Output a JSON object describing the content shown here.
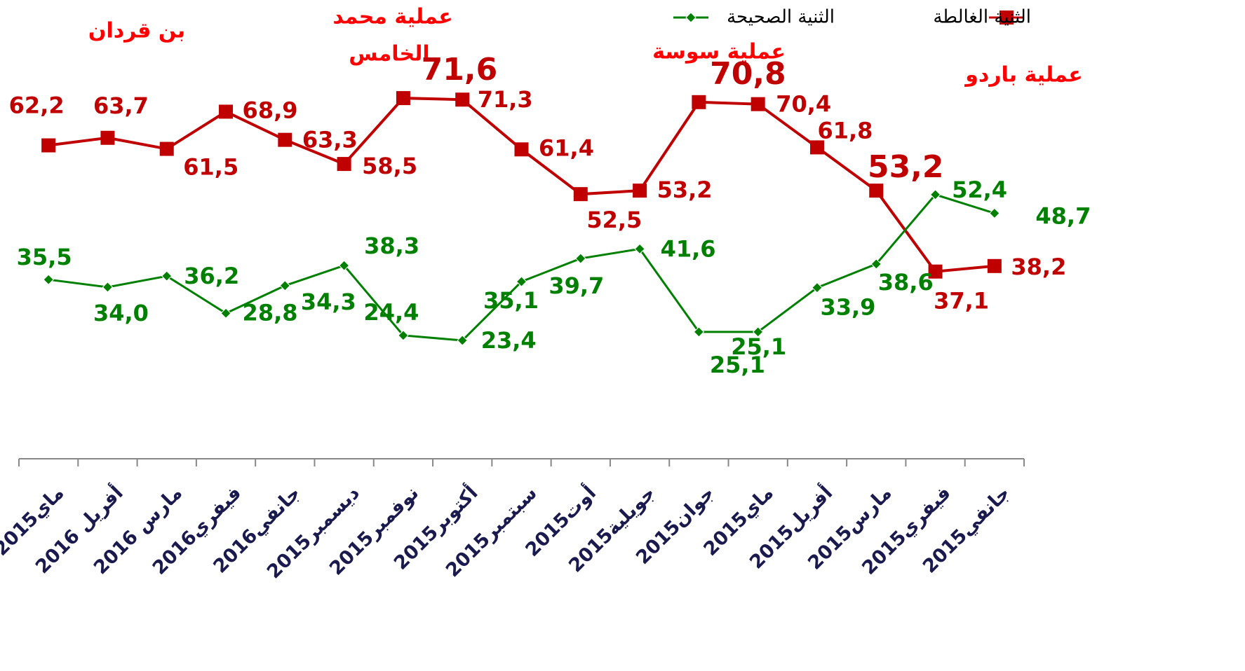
{
  "chart_data": {
    "type": "line",
    "categories": [
      "ماي2015",
      "أفريل 2016",
      "مارس 2016",
      "فيفري2016",
      "جانفي2016",
      "ديسمبر2015",
      "نوفمبر2015",
      "أكتوبر2015",
      "سبتمبر2015",
      "أوت2015",
      "جويلية2015",
      "جوان2015",
      "ماي2015",
      "أفريل2015",
      "مارس2015",
      "فيفري2015",
      "جانفي2015"
    ],
    "series": [
      {
        "name": "الثنية الغالطة",
        "color": "#c00000",
        "marker": "square",
        "values": [
          62.2,
          63.7,
          61.5,
          68.9,
          63.3,
          58.5,
          71.6,
          71.3,
          61.4,
          52.5,
          53.2,
          70.8,
          70.4,
          61.8,
          53.2,
          37.1,
          38.2
        ],
        "value_labels": [
          "62,2",
          "63,7",
          "61,5",
          "68,9",
          "63,3",
          "58,5",
          "71,6",
          "71,3",
          "61,4",
          "52,5",
          "53,2",
          "70,8",
          "70,4",
          "61,8",
          "53,2",
          "37,1",
          "38,2"
        ]
      },
      {
        "name": "الثنية الصحيحة",
        "color": "#008000",
        "marker": "diamond",
        "values": [
          35.5,
          34.0,
          36.2,
          28.8,
          34.3,
          38.3,
          24.4,
          23.4,
          35.1,
          39.7,
          41.6,
          25.1,
          25.1,
          33.9,
          38.6,
          52.4,
          48.7
        ],
        "value_labels": [
          "35,5",
          "34,0",
          "36,2",
          "28,8",
          "34,3",
          "38,3",
          "24,4",
          "23,4",
          "35,1",
          "39,7",
          "41,6",
          "25,1",
          "25,1",
          "33,9",
          "38,6",
          "52,4",
          "48,7"
        ]
      }
    ],
    "ylim": [
      0,
      90
    ],
    "annotations": [
      "بن قردان",
      "عملية محمد",
      "الخامس",
      "عملية سوسة",
      "عملية باردو"
    ],
    "legend": "top-right"
  }
}
